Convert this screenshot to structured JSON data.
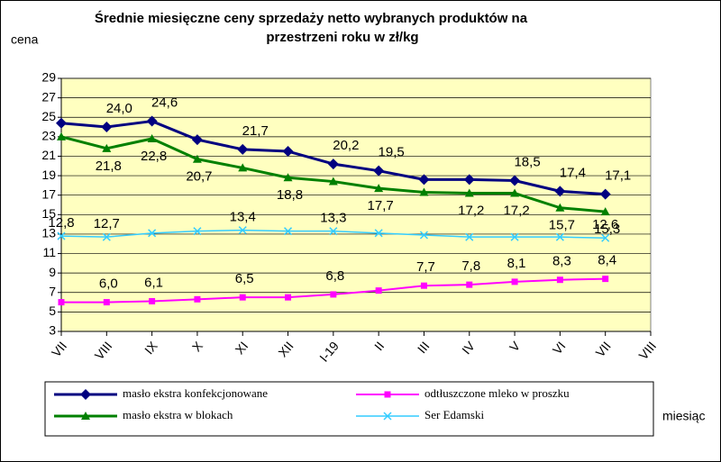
{
  "chart_data": {
    "type": "line",
    "title": [
      "Średnie miesięczne ceny sprzedaży netto  wybranych produktów na",
      "przestrzeni roku w zł/kg"
    ],
    "y_label": "cena",
    "x_label": "miesiąc",
    "categories": [
      "VII",
      "VIII",
      "IX",
      "X",
      "XI",
      "XII",
      "I-19",
      "II",
      "III",
      "IV",
      "V",
      "VI",
      "VII",
      "VIII"
    ],
    "ylim": [
      3,
      29
    ],
    "yticks": [
      3,
      5,
      7,
      9,
      11,
      13,
      15,
      17,
      19,
      21,
      23,
      25,
      27,
      29
    ],
    "grid": true,
    "series": [
      {
        "name": "masło ekstra konfekcjonowane",
        "color": "#000080",
        "marker": "diamond",
        "values": [
          24.4,
          24.0,
          24.6,
          22.7,
          21.7,
          21.5,
          20.2,
          19.5,
          18.6,
          18.6,
          18.5,
          17.4,
          17.1,
          null
        ],
        "value_labels": [
          null,
          "24,0",
          "24,6",
          null,
          "21,7",
          null,
          "20,2",
          "19,5",
          null,
          null,
          "18,5",
          "17,4",
          "17,1",
          null
        ]
      },
      {
        "name": "masło ekstra w blokach",
        "color": "#008000",
        "marker": "triangle",
        "values": [
          23.0,
          21.8,
          22.8,
          20.7,
          19.8,
          18.8,
          18.4,
          17.7,
          17.3,
          17.2,
          17.2,
          15.7,
          15.3,
          null
        ],
        "value_labels": [
          null,
          "21,8",
          "22,8",
          "20,7",
          null,
          "18,8",
          null,
          "17,7",
          null,
          "17,2",
          "17,2",
          "15,7",
          "15,3",
          null
        ]
      },
      {
        "name": "odtłuszczone mleko w proszku",
        "color": "#ff00ff",
        "marker": "square",
        "values": [
          6.0,
          6.0,
          6.1,
          6.3,
          6.5,
          6.5,
          6.8,
          7.2,
          7.7,
          7.8,
          8.1,
          8.3,
          8.4,
          null
        ],
        "value_labels": [
          null,
          "6,0",
          "6,1",
          null,
          "6,5",
          null,
          "6,8",
          null,
          "7,7",
          "7,8",
          "8,1",
          "8,3",
          "8,4",
          null
        ]
      },
      {
        "name": "Ser Edamski",
        "color": "#33ccff",
        "marker": "x",
        "values": [
          12.8,
          12.7,
          13.1,
          13.3,
          13.4,
          13.3,
          13.3,
          13.1,
          12.9,
          12.7,
          12.7,
          12.7,
          12.6,
          null
        ],
        "value_labels": [
          "12,8",
          "12,7",
          null,
          null,
          "13,4",
          null,
          "13,3",
          null,
          null,
          null,
          null,
          null,
          "12,6",
          null
        ]
      }
    ]
  }
}
